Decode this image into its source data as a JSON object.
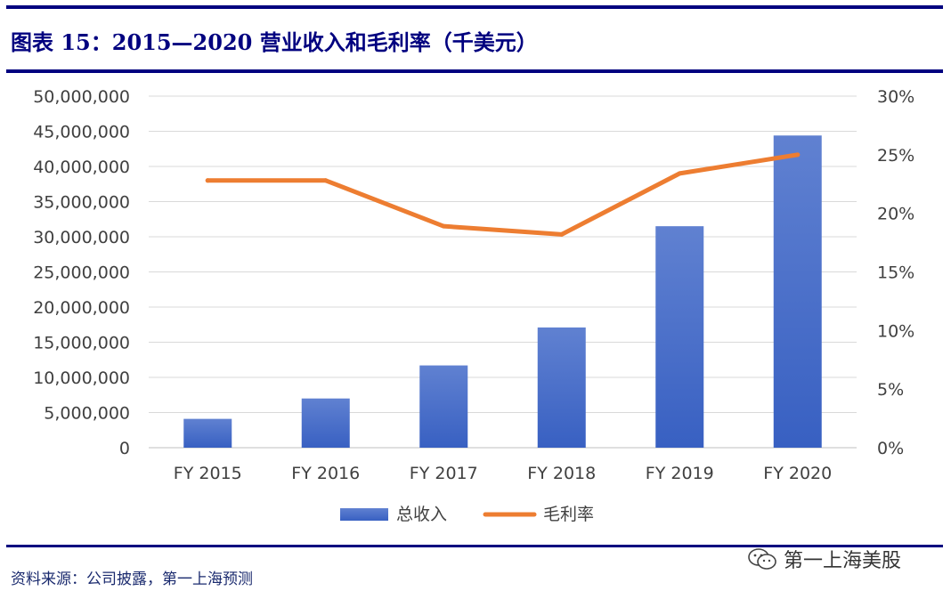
{
  "header": {
    "title": "图表 15：2015—2020 营业收入和毛利率（千美元）"
  },
  "footer": {
    "source": "资料来源：公司披露，第一上海预测",
    "watermark": "第一上海美股"
  },
  "colors": {
    "navy": "#00007f",
    "bar_top": "#6081d1",
    "bar_bottom": "#3860c2",
    "line": "#ed7d31",
    "axis_text": "#404040",
    "grid": "#d9d9d9"
  },
  "chart_data": {
    "type": "bar+line",
    "categories": [
      "FY 2015",
      "FY 2016",
      "FY 2017",
      "FY 2018",
      "FY 2019",
      "FY 2020"
    ],
    "series": [
      {
        "name": "总收入",
        "type": "bar",
        "axis": "left",
        "values": [
          4100000,
          7000000,
          11700000,
          17100000,
          31500000,
          44400000
        ]
      },
      {
        "name": "毛利率",
        "type": "line",
        "axis": "right",
        "values": [
          22.8,
          22.8,
          18.9,
          18.2,
          23.4,
          25.0
        ]
      }
    ],
    "y_left": {
      "min": 0,
      "max": 50000000,
      "step": 5000000,
      "tick_labels": [
        "0",
        "5,000,000",
        "10,000,000",
        "15,000,000",
        "20,000,000",
        "25,000,000",
        "30,000,000",
        "35,000,000",
        "40,000,000",
        "45,000,000",
        "50,000,000"
      ]
    },
    "y_right": {
      "min": 0,
      "max": 30,
      "step": 5,
      "tick_labels": [
        "0%",
        "5%",
        "10%",
        "15%",
        "20%",
        "25%",
        "30%"
      ]
    },
    "legend": {
      "placement": "bottom",
      "entries": [
        "总收入",
        "毛利率"
      ]
    },
    "grid": true
  }
}
